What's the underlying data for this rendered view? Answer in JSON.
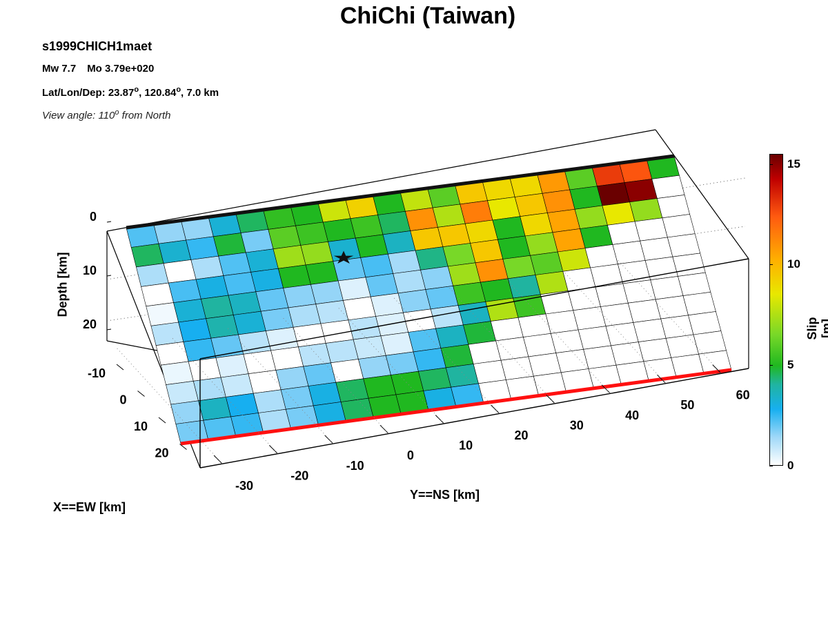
{
  "title": "ChiChi (Taiwan)",
  "event_id": "s1999CHICH1maet",
  "magnitude": "Mw 7.7",
  "moment": "Mo 3.79e+020",
  "location_prefix": "Lat/Lon/Dep: 23.87",
  "location_lat_lon_sep": ", 120.84",
  "location_suffix": ", 7.0 km",
  "degree_mark": "o",
  "view_prefix": "View angle: 110",
  "view_suffix": " from North",
  "chart_data": {
    "type": "heatmap",
    "subtype": "3d finite-fault slip model",
    "xlabel": "Y==NS [km]",
    "ylabel": "X==EW [km]",
    "zlabel": "Depth [km]",
    "colorbar_label": "Slip [m]",
    "y_ns_ticks": [
      "-30",
      "-20",
      "-10",
      "0",
      "10",
      "20",
      "30",
      "40",
      "50",
      "60"
    ],
    "x_ew_ticks": [
      "-10",
      "0",
      "10",
      "20"
    ],
    "depth_ticks": [
      "0",
      "10",
      "20"
    ],
    "colorbar_ticks": [
      "0",
      "5",
      "10",
      "15"
    ],
    "clim": [
      0,
      15.5
    ],
    "hypocenter": {
      "along_strike_index": 6.9,
      "down_dip_index": 2.4
    },
    "slip_grid_note": "rows = down-dip (top row at surface), columns = along strike from south (-38 km) to north (68 km); values in m",
    "slip": [
      [
        2.2,
        1.5,
        1.5,
        3.2,
        4.5,
        5.3,
        5.0,
        8.0,
        9.2,
        5.0,
        7.8,
        6.0,
        9.5,
        9.0,
        9.0,
        10.8,
        6.0,
        13.0,
        12.5,
        5.0
      ],
      [
        4.5,
        3.3,
        2.5,
        4.8,
        1.8,
        6.0,
        5.5,
        5.0,
        5.5,
        4.5,
        11.0,
        7.5,
        11.5,
        8.5,
        9.5,
        11.0,
        5.0,
        15.5,
        15.0,
        0.0
      ],
      [
        1.2,
        0.0,
        1.2,
        2.2,
        3.2,
        7.2,
        7.0,
        3.3,
        5.0,
        3.5,
        9.5,
        9.5,
        9.0,
        5.0,
        9.0,
        10.5,
        7.0,
        8.5,
        7.0,
        0.0
      ],
      [
        0.0,
        2.3,
        3.0,
        2.3,
        3.0,
        5.0,
        5.0,
        2.0,
        2.3,
        1.3,
        4.2,
        6.5,
        9.5,
        5.0,
        7.0,
        10.5,
        5.0,
        0.0,
        0.0,
        0.0
      ],
      [
        0.2,
        3.2,
        4.0,
        3.5,
        2.0,
        1.6,
        1.5,
        0.5,
        2.0,
        1.2,
        1.6,
        7.2,
        11.0,
        6.5,
        6.0,
        8.0,
        0.0,
        0.0,
        0.0,
        0.0
      ],
      [
        1.0,
        2.8,
        3.8,
        3.2,
        1.8,
        1.2,
        1.0,
        0.0,
        0.5,
        1.6,
        2.0,
        5.5,
        5.0,
        4.0,
        7.5,
        0.0,
        0.0,
        0.0,
        0.0,
        0.0
      ],
      [
        0.0,
        2.5,
        2.0,
        1.0,
        0.5,
        0.0,
        0.0,
        1.0,
        0.5,
        0.0,
        1.0,
        3.5,
        7.5,
        5.5,
        0.0,
        0.0,
        0.0,
        0.0,
        0.0,
        0.0
      ],
      [
        0.3,
        0.0,
        0.5,
        0.0,
        0.0,
        1.0,
        1.0,
        0.8,
        0.5,
        2.2,
        3.5,
        4.8,
        0.0,
        0.0,
        0.0,
        0.0,
        0.0,
        0.0,
        0.0,
        0.0
      ],
      [
        0.8,
        1.2,
        0.8,
        0.0,
        1.5,
        2.0,
        0.0,
        1.5,
        1.8,
        2.5,
        4.8,
        0.0,
        0.0,
        0.0,
        0.0,
        0.0,
        0.0,
        0.0,
        0.0,
        0.0
      ],
      [
        1.5,
        3.5,
        2.8,
        1.2,
        1.8,
        3.0,
        4.5,
        5.0,
        5.0,
        4.5,
        4.0,
        0.0,
        0.0,
        0.0,
        0.0,
        0.0,
        0.0,
        0.0,
        0.0,
        0.0
      ],
      [
        1.8,
        2.2,
        2.5,
        1.2,
        1.8,
        3.0,
        4.5,
        5.0,
        5.0,
        3.0,
        2.5,
        0.0,
        0.0,
        0.0,
        0.0,
        0.0,
        0.0,
        0.0,
        0.0,
        0.0
      ]
    ]
  },
  "colors": {
    "surface_trace": "#ff1010",
    "top_edge": "#111111",
    "grid_line": "#000000"
  }
}
